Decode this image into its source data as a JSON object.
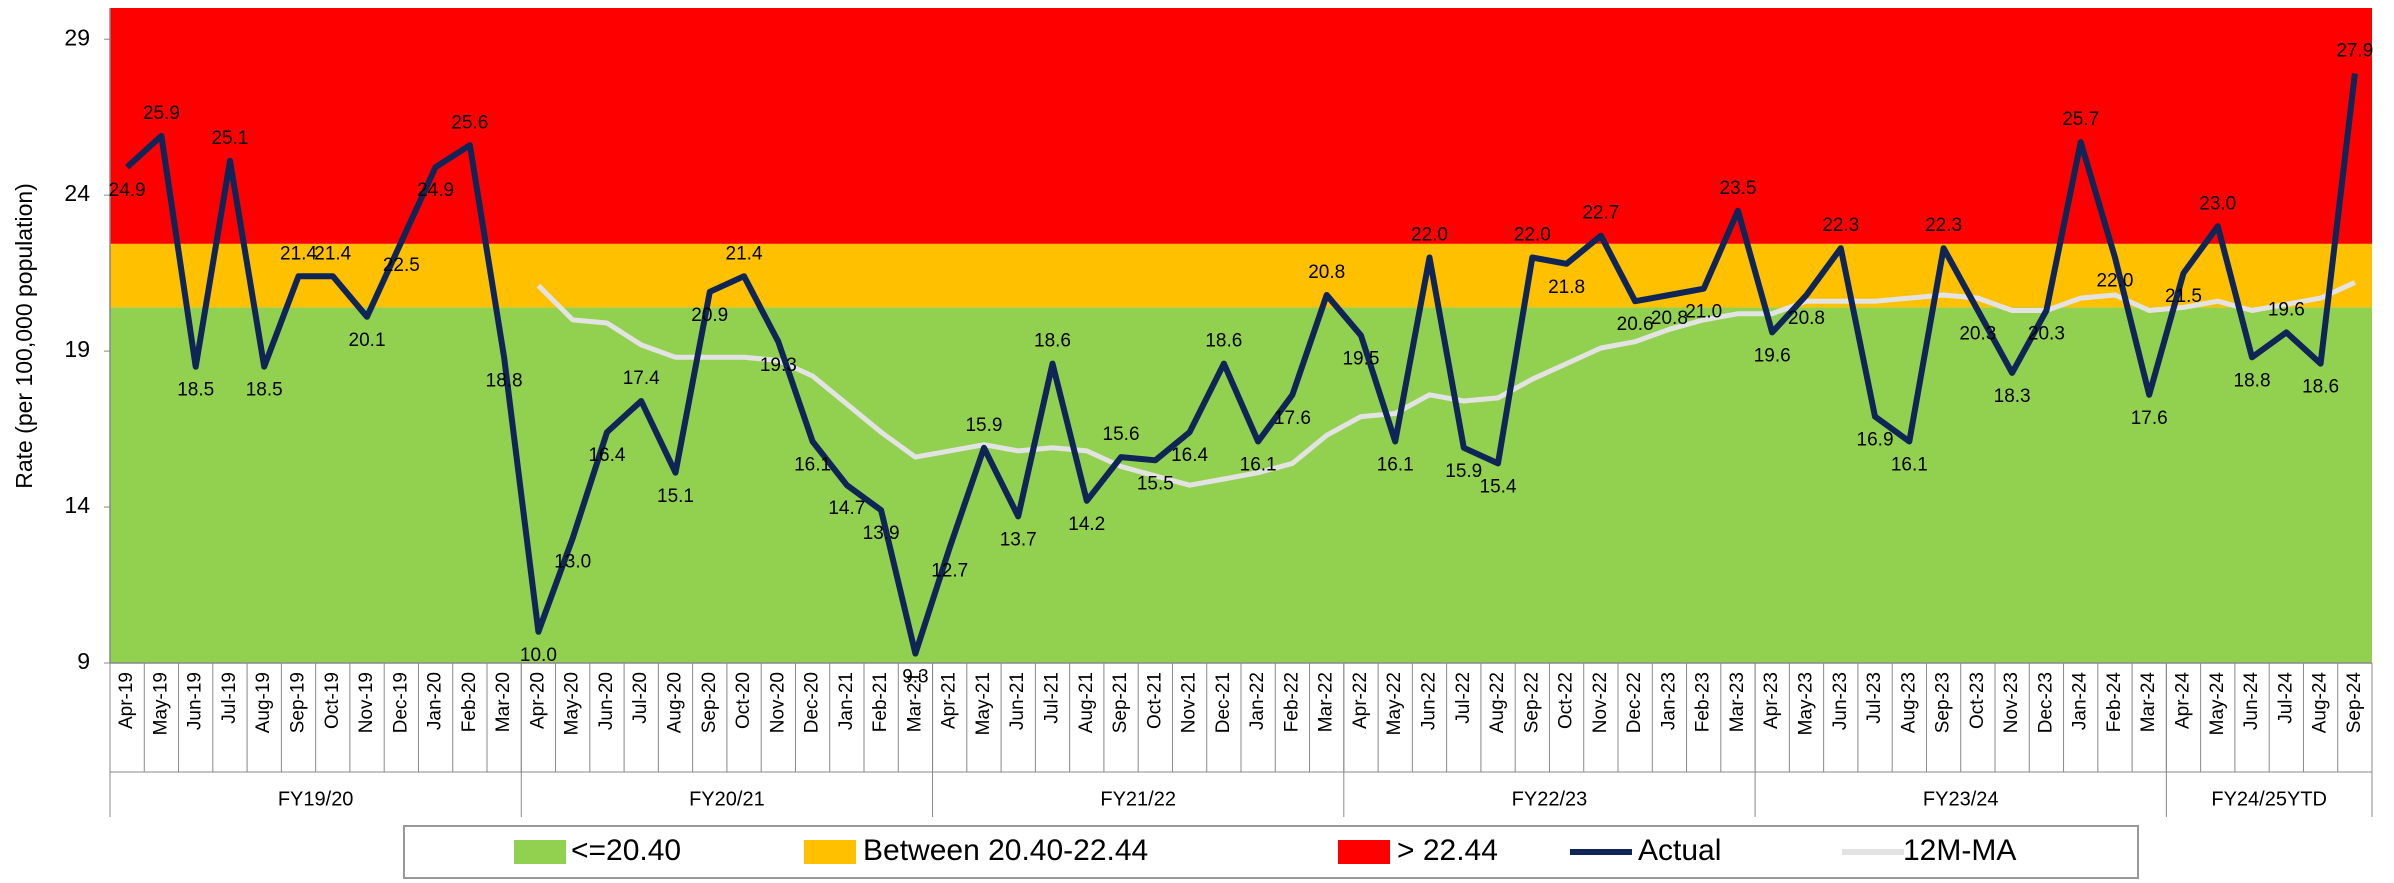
{
  "chart_data": {
    "type": "line",
    "y_label": "Rate (per 100,000 population)",
    "ylim": [
      9,
      30
    ],
    "yticks": [
      9,
      14,
      19,
      24,
      29
    ],
    "categories": [
      "Apr-19",
      "May-19",
      "Jun-19",
      "Jul-19",
      "Aug-19",
      "Sep-19",
      "Oct-19",
      "Nov-19",
      "Dec-19",
      "Jan-20",
      "Feb-20",
      "Mar-20",
      "Apr-20",
      "May-20",
      "Jun-20",
      "Jul-20",
      "Aug-20",
      "Sep-20",
      "Oct-20",
      "Nov-20",
      "Dec-20",
      "Jan-21",
      "Feb-21",
      "Mar-21",
      "Apr-21",
      "May-21",
      "Jun-21",
      "Jul-21",
      "Aug-21",
      "Sep-21",
      "Oct-21",
      "Nov-21",
      "Dec-21",
      "Jan-22",
      "Feb-22",
      "Mar-22",
      "Apr-22",
      "May-22",
      "Jun-22",
      "Jul-22",
      "Aug-22",
      "Sep-22",
      "Oct-22",
      "Nov-22",
      "Dec-22",
      "Jan-23",
      "Feb-23",
      "Mar-23",
      "Apr-23",
      "May-23",
      "Jun-23",
      "Jul-23",
      "Aug-23",
      "Sep-23",
      "Oct-23",
      "Nov-23",
      "Dec-23",
      "Jan-24",
      "Feb-24",
      "Mar-24",
      "Apr-24",
      "May-24",
      "Jun-24",
      "Jul-24",
      "Aug-24",
      "Sep-24"
    ],
    "groups": [
      "FY19/20",
      "FY20/21",
      "FY21/22",
      "FY22/23",
      "FY23/24",
      "FY24/25YTD"
    ],
    "bands": [
      {
        "name": "<=20.40",
        "color": "#92d050",
        "to": 20.4
      },
      {
        "name": "Between 20.40-22.44",
        "color": "#ffc000",
        "to": 22.44
      },
      {
        "name": "> 22.44",
        "color": "#ff0000"
      }
    ],
    "series": [
      {
        "name": "Actual",
        "color": "#0f2557",
        "show_labels": true,
        "values": [
          24.9,
          25.9,
          18.5,
          25.1,
          18.5,
          21.4,
          21.4,
          20.1,
          22.5,
          24.9,
          25.6,
          18.8,
          10.0,
          13.0,
          16.4,
          17.4,
          15.1,
          20.9,
          21.4,
          19.3,
          16.1,
          14.7,
          13.9,
          9.3,
          12.7,
          15.9,
          13.7,
          18.6,
          14.2,
          15.6,
          15.5,
          16.4,
          18.6,
          16.1,
          17.6,
          20.8,
          19.5,
          16.1,
          22.0,
          15.9,
          15.4,
          22.0,
          21.8,
          22.7,
          20.6,
          20.8,
          21.0,
          23.5,
          19.6,
          20.8,
          22.3,
          16.9,
          16.1,
          22.3,
          20.3,
          18.3,
          20.3,
          25.7,
          22.0,
          17.6,
          21.5,
          23.0,
          18.8,
          19.6,
          18.6,
          27.9
        ],
        "value_labels": [
          "24.9",
          "25.9",
          "18.5",
          "25.1",
          "18.5",
          "21.4",
          "21.4",
          "20.1",
          "22.5",
          "24.9",
          "25.6",
          "18.8",
          "10.0",
          "13.0",
          "16.4",
          "17.4",
          "15.1",
          "20.9",
          "21.4",
          "19.3",
          "16.1",
          "14.7",
          "13.9",
          "9.3",
          "12.7",
          "15.9",
          "13.7",
          "18.6",
          "14.2",
          "15.6",
          "15.5",
          "16.4",
          "18.6",
          "16.1",
          "17.6",
          "20.8",
          "19.5",
          "16.1",
          "22.0",
          "15.9",
          "15.4",
          "22.0",
          "21.8",
          "22.7",
          "20.6",
          "20.8",
          "21.0",
          "23.5",
          "19.6",
          "20.8",
          "22.3",
          "16.9",
          "16.1",
          "22.3",
          "20.3",
          "18.3",
          "20.3",
          "25.7",
          "22.0",
          "17.6",
          "21.5",
          "23.0",
          "18.8",
          "19.6",
          "18.6",
          "27.9"
        ]
      },
      {
        "name": "12M-MA",
        "color": "#e3e3e3",
        "show_labels": false,
        "values": [
          null,
          null,
          null,
          null,
          null,
          null,
          null,
          null,
          null,
          null,
          null,
          null,
          21.1,
          20.0,
          19.9,
          19.2,
          18.8,
          18.8,
          18.8,
          18.7,
          18.2,
          17.3,
          16.4,
          15.6,
          15.8,
          16.0,
          15.8,
          15.9,
          15.8,
          15.3,
          15.0,
          14.7,
          14.9,
          15.1,
          15.4,
          16.3,
          16.9,
          17.0,
          17.6,
          17.4,
          17.5,
          18.1,
          18.6,
          19.1,
          19.3,
          19.7,
          20.0,
          20.2,
          20.2,
          20.6,
          20.6,
          20.6,
          20.7,
          20.8,
          20.7,
          20.3,
          20.3,
          20.7,
          20.8,
          20.3,
          20.4,
          20.6,
          20.3,
          20.5,
          20.7,
          21.2
        ]
      }
    ]
  }
}
